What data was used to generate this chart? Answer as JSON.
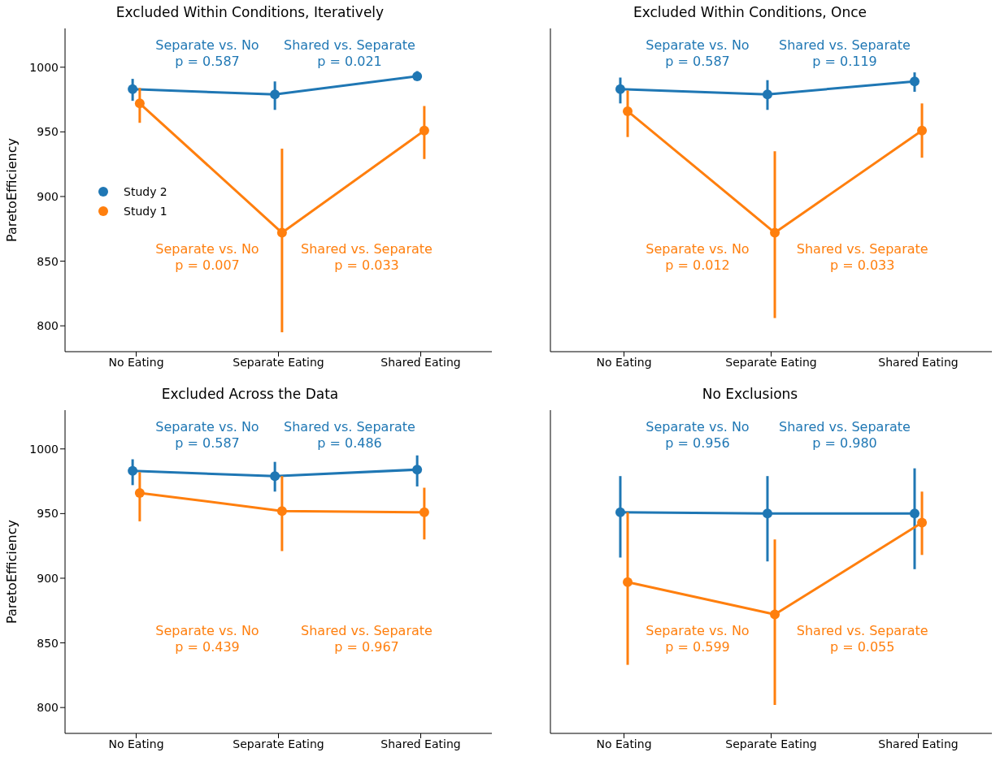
{
  "chart_data": [
    {
      "type": "line",
      "title": "Excluded Within Conditions, Iteratively",
      "ylabel": "ParetoEfficiency",
      "categories": [
        "No Eating",
        "Separate Eating",
        "Shared Eating"
      ],
      "ylim": [
        780,
        1030
      ],
      "yticks": [
        800,
        850,
        900,
        950,
        1000
      ],
      "marker": "circle",
      "legend": "center left",
      "series": [
        {
          "name": "Study 2",
          "color": "#1f77b4",
          "values": [
            983,
            979,
            993
          ],
          "errors": [
            [
              974,
              991
            ],
            [
              967,
              989
            ],
            [
              990,
              997
            ]
          ]
        },
        {
          "name": "Study 1",
          "color": "#ff7f0e",
          "values": [
            972,
            872,
            951
          ],
          "errors": [
            [
              957,
              984
            ],
            [
              795,
              937
            ],
            [
              929,
              970
            ]
          ]
        }
      ],
      "annotations": [
        "Separate vs. No\np = 0.587",
        "Shared vs. Separate\np = 0.021",
        "Separate vs. No\np = 0.007",
        "Shared vs. Separate\np = 0.033"
      ]
    },
    {
      "type": "line",
      "title": "Excluded Within Conditions, Once",
      "categories": [
        "No Eating",
        "Separate Eating",
        "Shared Eating"
      ],
      "ylim": [
        780,
        1030
      ],
      "yticks": [
        800,
        850,
        900,
        950,
        1000
      ],
      "tick_labels": "x",
      "marker": "circle",
      "series": [
        {
          "color": "#1f77b4",
          "values": [
            983,
            979,
            989
          ],
          "errors": [
            [
              972,
              992
            ],
            [
              967,
              990
            ],
            [
              981,
              996
            ]
          ]
        },
        {
          "color": "#ff7f0e",
          "values": [
            966,
            872,
            951
          ],
          "errors": [
            [
              946,
              982
            ],
            [
              806,
              935
            ],
            [
              930,
              972
            ]
          ]
        }
      ],
      "annotations": [
        "Separate vs. No\np = 0.587",
        "Shared vs. Separate\np = 0.119",
        "Separate vs. No\np = 0.012",
        "Shared vs. Separate\np = 0.033"
      ]
    },
    {
      "type": "line",
      "title": "Excluded Across the Data",
      "ylabel": "ParetoEfficiency",
      "categories": [
        "No Eating",
        "Separate Eating",
        "Shared Eating"
      ],
      "ylim": [
        780,
        1030
      ],
      "yticks": [
        800,
        850,
        900,
        950,
        1000
      ],
      "marker": "circle",
      "series": [
        {
          "color": "#1f77b4",
          "values": [
            983,
            979,
            984
          ],
          "errors": [
            [
              972,
              992
            ],
            [
              967,
              990
            ],
            [
              971,
              995
            ]
          ]
        },
        {
          "color": "#ff7f0e",
          "values": [
            966,
            952,
            951
          ],
          "errors": [
            [
              944,
              982
            ],
            [
              921,
              979
            ],
            [
              930,
              970
            ]
          ]
        }
      ],
      "annotations": [
        "Separate vs. No\np = 0.587",
        "Shared vs. Separate\np = 0.486",
        "Separate vs. No\np = 0.439",
        "Shared vs. Separate\np = 0.967"
      ]
    },
    {
      "type": "line",
      "title": "No Exclusions",
      "categories": [
        "No Eating",
        "Separate Eating",
        "Shared Eating"
      ],
      "ylim": [
        780,
        1030
      ],
      "yticks": [
        800,
        850,
        900,
        950,
        1000
      ],
      "tick_labels": "x",
      "marker": "circle",
      "series": [
        {
          "color": "#1f77b4",
          "values": [
            951,
            950,
            950
          ],
          "errors": [
            [
              916,
              979
            ],
            [
              913,
              979
            ],
            [
              907,
              985
            ]
          ]
        },
        {
          "color": "#ff7f0e",
          "values": [
            897,
            872,
            943
          ],
          "errors": [
            [
              833,
              951
            ],
            [
              802,
              930
            ],
            [
              918,
              967
            ]
          ]
        }
      ],
      "annotations": [
        "Separate vs. No\np = 0.956",
        "Shared vs. Separate\np = 0.980",
        "Separate vs. No\np = 0.599",
        "Shared vs. Separate\np = 0.055"
      ]
    }
  ]
}
